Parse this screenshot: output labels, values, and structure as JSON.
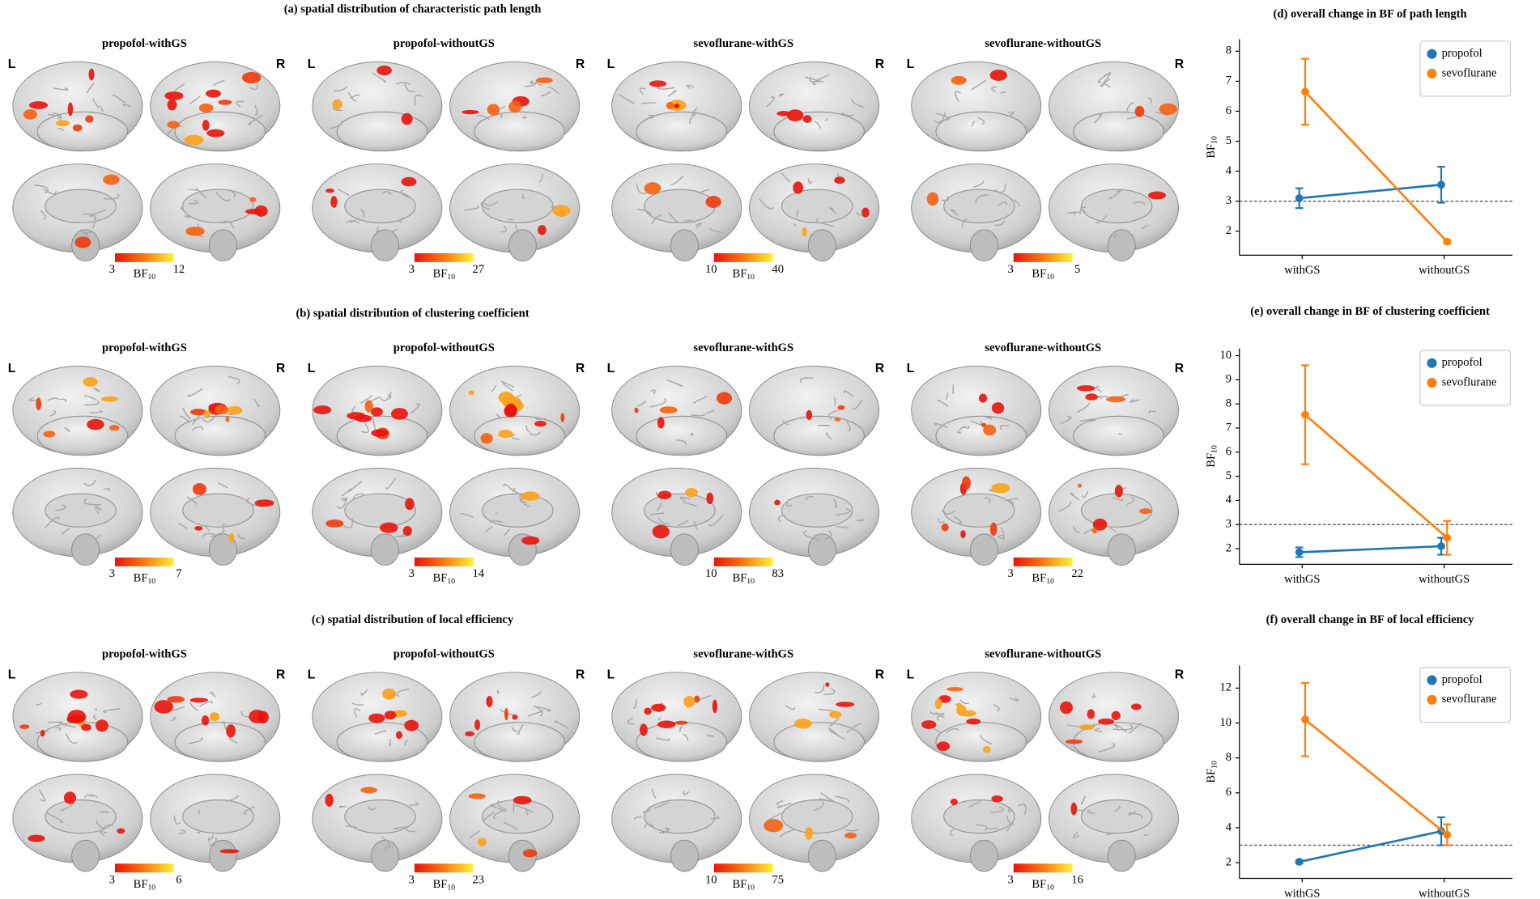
{
  "figure": {
    "hemi_labels": [
      "L",
      "R"
    ],
    "cbar_label": "BF",
    "cbar_sub": "10",
    "rows": [
      {
        "title": "(a) spatial distribution of characteristic path length",
        "panels": [
          {
            "name": "propofol-withGS",
            "cbar_min": 3,
            "cbar_max": 12
          },
          {
            "name": "propofol-withoutGS",
            "cbar_min": 3,
            "cbar_max": 27
          },
          {
            "name": "sevoflurane-withGS",
            "cbar_min": 10,
            "cbar_max": 40
          },
          {
            "name": "sevoflurane-withoutGS",
            "cbar_min": 3,
            "cbar_max": 5
          }
        ]
      },
      {
        "title": "(b) spatial distribution of clustering coefficient",
        "panels": [
          {
            "name": "propofol-withGS",
            "cbar_min": 3,
            "cbar_max": 7
          },
          {
            "name": "propofol-withoutGS",
            "cbar_min": 3,
            "cbar_max": 14
          },
          {
            "name": "sevoflurane-withGS",
            "cbar_min": 10,
            "cbar_max": 83
          },
          {
            "name": "sevoflurane-withoutGS",
            "cbar_min": 3,
            "cbar_max": 22
          }
        ]
      },
      {
        "title": "(c) spatial distribution of local efficiency",
        "panels": [
          {
            "name": "propofol-withGS",
            "cbar_min": 3,
            "cbar_max": 6
          },
          {
            "name": "propofol-withoutGS",
            "cbar_min": 3,
            "cbar_max": 23
          },
          {
            "name": "sevoflurane-withGS",
            "cbar_min": 10,
            "cbar_max": 75
          },
          {
            "name": "sevoflurane-withoutGS",
            "cbar_min": 3,
            "cbar_max": 16
          }
        ]
      }
    ]
  },
  "chart_data": [
    {
      "type": "line",
      "title": "(d) overall change in BF of path length",
      "ylabel": "BF",
      "ylabel_sub": "10",
      "categories": [
        "withGS",
        "withoutGS"
      ],
      "ylim": [
        1.2,
        8.4
      ],
      "yticks": [
        2,
        3,
        4,
        5,
        6,
        7,
        8
      ],
      "hline": 3,
      "legend": "upper right",
      "series": [
        {
          "name": "propofol",
          "color": "#1f77b4",
          "values": [
            3.1,
            3.55
          ],
          "errors": [
            0.33,
            0.6
          ]
        },
        {
          "name": "sevoflurane",
          "color": "#ff7f0e",
          "values": [
            6.65,
            1.65
          ],
          "errors": [
            1.1,
            0.05
          ]
        }
      ]
    },
    {
      "type": "line",
      "title": "(e) overall change in BF of clustering coefficient",
      "ylabel": "BF",
      "ylabel_sub": "10",
      "categories": [
        "withGS",
        "withoutGS"
      ],
      "ylim": [
        1.35,
        10.3
      ],
      "yticks": [
        2,
        3,
        4,
        5,
        6,
        7,
        8,
        9,
        10
      ],
      "hline": 3,
      "legend": "upper right",
      "series": [
        {
          "name": "propofol",
          "color": "#1f77b4",
          "values": [
            1.85,
            2.1
          ],
          "errors": [
            0.2,
            0.35
          ]
        },
        {
          "name": "sevoflurane",
          "color": "#ff7f0e",
          "values": [
            7.55,
            2.45
          ],
          "errors": [
            2.05,
            0.7
          ]
        }
      ]
    },
    {
      "type": "line",
      "title": "(f) overall change in BF of local efficiency",
      "ylabel": "BF",
      "ylabel_sub": "10",
      "categories": [
        "withGS",
        "withoutGS"
      ],
      "ylim": [
        1.1,
        13.3
      ],
      "yticks": [
        2,
        4,
        6,
        8,
        10,
        12
      ],
      "hline": 3,
      "legend": "upper right",
      "series": [
        {
          "name": "propofol",
          "color": "#1f77b4",
          "values": [
            2.05,
            3.8
          ],
          "errors": [
            0.08,
            0.8
          ]
        },
        {
          "name": "sevoflurane",
          "color": "#ff7f0e",
          "values": [
            10.2,
            3.6
          ],
          "errors": [
            2.1,
            0.6
          ]
        }
      ]
    }
  ]
}
